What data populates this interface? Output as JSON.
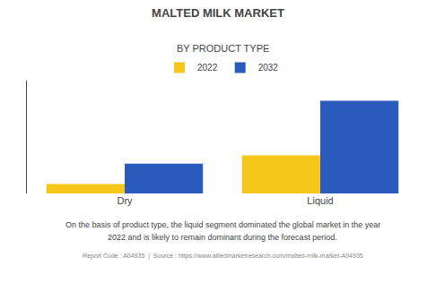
{
  "chart_data": {
    "type": "bar",
    "title": "MALTED MILK MARKET",
    "subtitle": "BY PRODUCT TYPE",
    "categories": [
      "Dry",
      "Liquid"
    ],
    "series": [
      {
        "name": "2022",
        "color": "#F5C518",
        "values": [
          0.8,
          3.2
        ]
      },
      {
        "name": "2032",
        "color": "#2B5BBD",
        "values": [
          2.5,
          7.8
        ]
      }
    ],
    "ylim": [
      0,
      9.5
    ],
    "yticks": [],
    "tick_labels": "x",
    "grid": false,
    "legend": "top",
    "annotations": [
      "On the basis of product type, the liquid segment dominated the global market in the year",
      "2022 and is likely to remain dominant during the forecast period."
    ],
    "footer": "Report Code : A04935  |  Source : https://www.alliedmarketresearch.com/malted-milk-market-A04935"
  }
}
